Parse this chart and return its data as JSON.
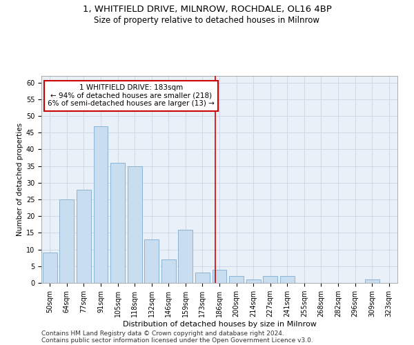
{
  "title1": "1, WHITFIELD DRIVE, MILNROW, ROCHDALE, OL16 4BP",
  "title2": "Size of property relative to detached houses in Milnrow",
  "xlabel": "Distribution of detached houses by size in Milnrow",
  "ylabel": "Number of detached properties",
  "categories": [
    "50sqm",
    "64sqm",
    "77sqm",
    "91sqm",
    "105sqm",
    "118sqm",
    "132sqm",
    "146sqm",
    "159sqm",
    "173sqm",
    "186sqm",
    "200sqm",
    "214sqm",
    "227sqm",
    "241sqm",
    "255sqm",
    "268sqm",
    "282sqm",
    "296sqm",
    "309sqm",
    "323sqm"
  ],
  "values": [
    9,
    25,
    28,
    47,
    36,
    35,
    13,
    7,
    16,
    3,
    4,
    2,
    1,
    2,
    2,
    0,
    0,
    0,
    0,
    1,
    0
  ],
  "bar_color": "#c9ddf0",
  "bar_edge_color": "#8ab4d4",
  "annotation_text": "1 WHITFIELD DRIVE: 183sqm\n← 94% of detached houses are smaller (218)\n6% of semi-detached houses are larger (13) →",
  "annotation_box_color": "#ffffff",
  "annotation_box_edge": "#cc0000",
  "vline_color": "#cc0000",
  "ylim": [
    0,
    62
  ],
  "yticks": [
    0,
    5,
    10,
    15,
    20,
    25,
    30,
    35,
    40,
    45,
    50,
    55,
    60
  ],
  "grid_color": "#d0d8e8",
  "bg_color": "#eaf0f8",
  "footer1": "Contains HM Land Registry data © Crown copyright and database right 2024.",
  "footer2": "Contains public sector information licensed under the Open Government Licence v3.0.",
  "title1_fontsize": 9.5,
  "title2_fontsize": 8.5,
  "xlabel_fontsize": 8,
  "ylabel_fontsize": 7.5,
  "tick_fontsize": 7,
  "footer_fontsize": 6.5,
  "annot_fontsize": 7.5,
  "vline_pos": 9.77
}
